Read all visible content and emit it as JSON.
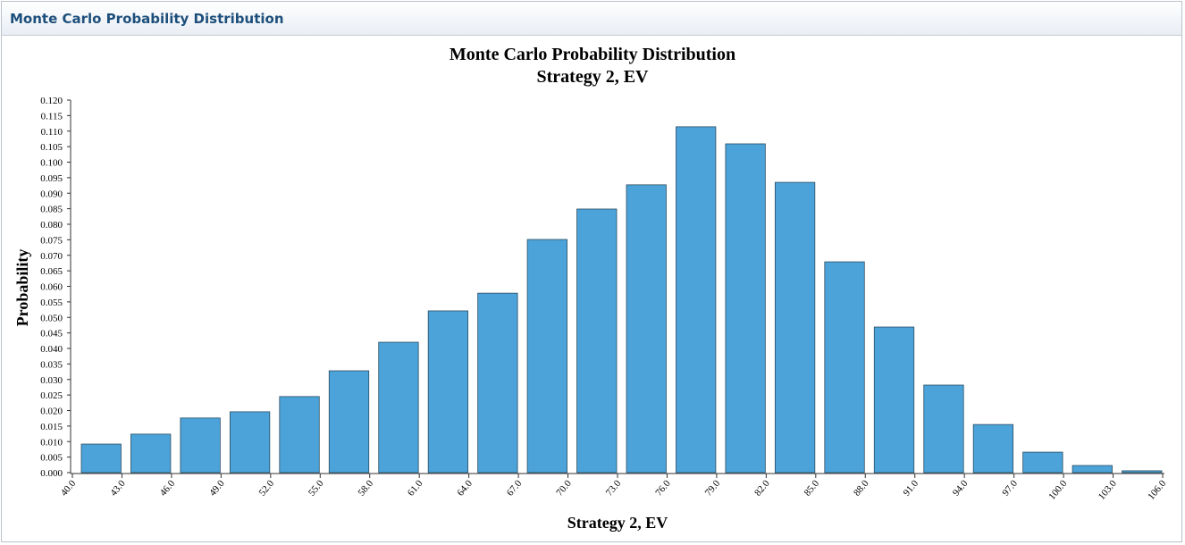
{
  "panel": {
    "title": "Monte Carlo Probability Distribution"
  },
  "chart_data": {
    "type": "histogram",
    "title": "Monte Carlo Probability Distribution",
    "subtitle": "Strategy 2, EV",
    "x_label": "Strategy 2, EV",
    "y_label": "Probability",
    "color": "#4ba3d9",
    "bins": [
      40,
      43,
      46,
      49,
      52,
      55,
      58,
      61,
      64,
      67,
      70,
      73,
      76,
      79,
      82,
      85,
      88,
      91,
      94,
      97,
      100,
      103,
      106
    ],
    "values": [
      0.0092,
      0.0124,
      0.0176,
      0.0196,
      0.0245,
      0.0328,
      0.042,
      0.0521,
      0.0578,
      0.0751,
      0.0849,
      0.0927,
      0.1114,
      0.1059,
      0.0935,
      0.0679,
      0.0469,
      0.0282,
      0.0155,
      0.0066,
      0.0023,
      0.0006
    ],
    "xlim": [
      40,
      106
    ],
    "xticks": [
      {
        "value": 40,
        "label": "40.0"
      },
      {
        "value": 43,
        "label": "43.0"
      },
      {
        "value": 46,
        "label": "46.0"
      },
      {
        "value": 49,
        "label": "49.0"
      },
      {
        "value": 52,
        "label": "52.0"
      },
      {
        "value": 55,
        "label": "55.0"
      },
      {
        "value": 58,
        "label": "58.0"
      },
      {
        "value": 61,
        "label": "61.0"
      },
      {
        "value": 64,
        "label": "64.0"
      },
      {
        "value": 67,
        "label": "67.0"
      },
      {
        "value": 70,
        "label": "70.0"
      },
      {
        "value": 73,
        "label": "73.0"
      },
      {
        "value": 76,
        "label": "76.0"
      },
      {
        "value": 79,
        "label": "79.0"
      },
      {
        "value": 82,
        "label": "82.0"
      },
      {
        "value": 85,
        "label": "85.0"
      },
      {
        "value": 88,
        "label": "88.0"
      },
      {
        "value": 91,
        "label": "91.0"
      },
      {
        "value": 94,
        "label": "94.0"
      },
      {
        "value": 97,
        "label": "97.0"
      },
      {
        "value": 100,
        "label": "100.0"
      },
      {
        "value": 103,
        "label": "103.0"
      },
      {
        "value": 106,
        "label": "106.0"
      }
    ],
    "ylim": [
      0,
      0.12
    ],
    "yticks": [
      {
        "value": 0,
        "label": "0.000"
      },
      {
        "value": 0.005,
        "label": "0.005"
      },
      {
        "value": 0.01,
        "label": "0.010"
      },
      {
        "value": 0.015,
        "label": "0.015"
      },
      {
        "value": 0.02,
        "label": "0.020"
      },
      {
        "value": 0.025,
        "label": "0.025"
      },
      {
        "value": 0.03,
        "label": "0.030"
      },
      {
        "value": 0.035,
        "label": "0.035"
      },
      {
        "value": 0.04,
        "label": "0.040"
      },
      {
        "value": 0.045,
        "label": "0.045"
      },
      {
        "value": 0.05,
        "label": "0.050"
      },
      {
        "value": 0.055,
        "label": "0.055"
      },
      {
        "value": 0.06,
        "label": "0.060"
      },
      {
        "value": 0.065,
        "label": "0.065"
      },
      {
        "value": 0.07,
        "label": "0.070"
      },
      {
        "value": 0.075,
        "label": "0.075"
      },
      {
        "value": 0.08,
        "label": "0.080"
      },
      {
        "value": 0.085,
        "label": "0.085"
      },
      {
        "value": 0.09,
        "label": "0.090"
      },
      {
        "value": 0.095,
        "label": "0.095"
      },
      {
        "value": 0.1,
        "label": "0.100"
      },
      {
        "value": 0.105,
        "label": "0.105"
      },
      {
        "value": 0.11,
        "label": "0.110"
      },
      {
        "value": 0.115,
        "label": "0.115"
      },
      {
        "value": 0.12,
        "label": "0.120"
      }
    ],
    "grid": false
  }
}
